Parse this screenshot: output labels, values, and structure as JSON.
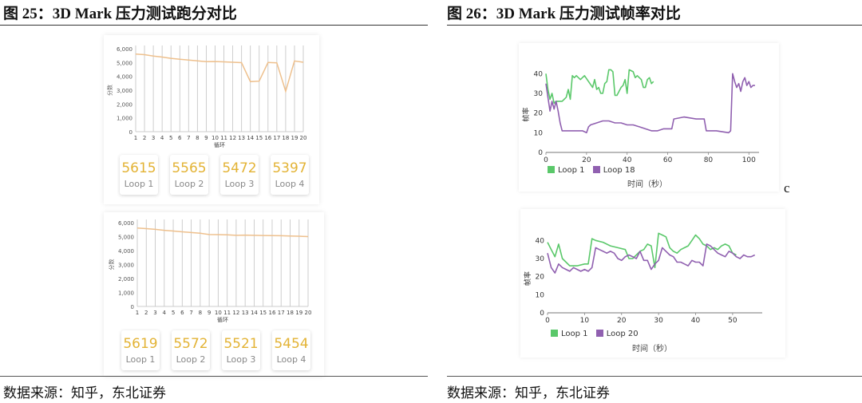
{
  "titles": {
    "fig25": "图 25：3D Mark 压力测试跑分对比",
    "fig26": "图 26：3D Mark 压力测试帧率对比"
  },
  "sources": {
    "left": "数据来源：知乎，东北证券",
    "right": "数据来源：知乎，东北证券"
  },
  "stray_mark": "c",
  "colors": {
    "score_line": "#eec08d",
    "loop_a": "#5ac86a",
    "loop_b": "#9060b0",
    "card_value": "#e3b335"
  },
  "chart_data": [
    {
      "id": "score-top",
      "type": "line",
      "ylabel": "分数",
      "xlabel": "循环",
      "x": [
        "1",
        "2",
        "3",
        "4",
        "5",
        "6",
        "7",
        "8",
        "9",
        "10",
        "11",
        "12",
        "13",
        "14",
        "15",
        "16",
        "17",
        "18",
        "19",
        "20"
      ],
      "values": [
        5615,
        5565,
        5472,
        5397,
        5300,
        5230,
        5180,
        5120,
        5060,
        5070,
        5050,
        5020,
        4990,
        3620,
        3650,
        5000,
        4980,
        2920,
        5110,
        5020
      ],
      "ylim": [
        0,
        6000
      ],
      "yticks": [
        "0",
        "1,000",
        "2,000",
        "3,000",
        "4,000",
        "5,000",
        "6,000"
      ],
      "cards": [
        {
          "value": "5615",
          "label": "Loop 1"
        },
        {
          "value": "5565",
          "label": "Loop 2"
        },
        {
          "value": "5472",
          "label": "Loop 3"
        },
        {
          "value": "5397",
          "label": "Loop 4"
        }
      ]
    },
    {
      "id": "score-bottom",
      "type": "line",
      "ylabel": "分数",
      "xlabel": "循环",
      "x": [
        "1",
        "2",
        "3",
        "4",
        "5",
        "6",
        "7",
        "8",
        "9",
        "10",
        "11",
        "12",
        "13",
        "14",
        "15",
        "16",
        "17",
        "18",
        "19",
        "20"
      ],
      "values": [
        5619,
        5572,
        5521,
        5454,
        5400,
        5340,
        5290,
        5240,
        5150,
        5140,
        5130,
        5090,
        5110,
        5090,
        5080,
        5070,
        5060,
        5040,
        5030,
        5000
      ],
      "ylim": [
        0,
        6000
      ],
      "yticks": [
        "0",
        "1,000",
        "2,000",
        "3,000",
        "4,000",
        "5,000",
        "6,000"
      ],
      "cards": [
        {
          "value": "5619",
          "label": "Loop 1"
        },
        {
          "value": "5572",
          "label": "Loop 2"
        },
        {
          "value": "5521",
          "label": "Loop 3"
        },
        {
          "value": "5454",
          "label": "Loop 4"
        }
      ]
    },
    {
      "id": "fps-top",
      "type": "line",
      "ylabel": "帧率",
      "xlabel": "时间（秒）",
      "xlim": [
        0,
        105
      ],
      "ylim": [
        0,
        45
      ],
      "xticks": [
        "0",
        "20",
        "40",
        "60",
        "80",
        "100"
      ],
      "yticks": [
        "0",
        "10",
        "20",
        "30",
        "40"
      ],
      "series": [
        {
          "name": "Loop 1",
          "points": [
            [
              0,
              40
            ],
            [
              1,
              32
            ],
            [
              2,
              27
            ],
            [
              3,
              30
            ],
            [
              4,
              25
            ],
            [
              5,
              26
            ],
            [
              8,
              26
            ],
            [
              10,
              28
            ],
            [
              11,
              32
            ],
            [
              12,
              27
            ],
            [
              13,
              39
            ],
            [
              14,
              38
            ],
            [
              15,
              39
            ],
            [
              17,
              37
            ],
            [
              19,
              39
            ],
            [
              21,
              36
            ],
            [
              23,
              33
            ],
            [
              24,
              37
            ],
            [
              25,
              32
            ],
            [
              26,
              33
            ],
            [
              27,
              30
            ],
            [
              28,
              30
            ],
            [
              29,
              35
            ],
            [
              30,
              36
            ],
            [
              31,
              42
            ],
            [
              32,
              42
            ],
            [
              33,
              41
            ],
            [
              34,
              29
            ],
            [
              35,
              29
            ],
            [
              37,
              33
            ],
            [
              38,
              34
            ],
            [
              39,
              37
            ],
            [
              40,
              30
            ],
            [
              41,
              42
            ],
            [
              43,
              41
            ],
            [
              44,
              38
            ],
            [
              45,
              39
            ],
            [
              47,
              37
            ],
            [
              48,
              33
            ],
            [
              49,
              33
            ],
            [
              50,
              37
            ],
            [
              51,
              38
            ],
            [
              52,
              35
            ],
            [
              53,
              36
            ]
          ]
        },
        {
          "name": "Loop 18",
          "points": [
            [
              0,
              35
            ],
            [
              1,
              28
            ],
            [
              2,
              21
            ],
            [
              3,
              26
            ],
            [
              4,
              22
            ],
            [
              5,
              26
            ],
            [
              6,
              21
            ],
            [
              7,
              15
            ],
            [
              8,
              11
            ],
            [
              10,
              11
            ],
            [
              12,
              11
            ],
            [
              15,
              11
            ],
            [
              18,
              11
            ],
            [
              20,
              10
            ],
            [
              21,
              13
            ],
            [
              22,
              14
            ],
            [
              25,
              15
            ],
            [
              28,
              16
            ],
            [
              31,
              16
            ],
            [
              34,
              15
            ],
            [
              37,
              15
            ],
            [
              40,
              14
            ],
            [
              43,
              14
            ],
            [
              46,
              13
            ],
            [
              49,
              12
            ],
            [
              52,
              11
            ],
            [
              55,
              11
            ],
            [
              58,
              12
            ],
            [
              62,
              12
            ],
            [
              63,
              17
            ],
            [
              68,
              18
            ],
            [
              74,
              17
            ],
            [
              78,
              17
            ],
            [
              79,
              11
            ],
            [
              84,
              11
            ],
            [
              90,
              10
            ],
            [
              91,
              11
            ],
            [
              92,
              40
            ],
            [
              93,
              36
            ],
            [
              94,
              33
            ],
            [
              95,
              35
            ],
            [
              96,
              31
            ],
            [
              97,
              36
            ],
            [
              98,
              38
            ],
            [
              99,
              34
            ],
            [
              100,
              36
            ],
            [
              101,
              33
            ],
            [
              102,
              34
            ],
            [
              103,
              34
            ]
          ]
        }
      ]
    },
    {
      "id": "fps-bottom",
      "type": "line",
      "ylabel": "帧率",
      "xlabel": "时间（秒）",
      "xlim": [
        0,
        58
      ],
      "ylim": [
        0,
        45
      ],
      "xticks": [
        "0",
        "10",
        "20",
        "30",
        "40",
        "50"
      ],
      "yticks": [
        "0",
        "10",
        "20",
        "30",
        "40"
      ],
      "series": [
        {
          "name": "Loop 1",
          "points": [
            [
              0,
              39
            ],
            [
              1,
              35
            ],
            [
              2,
              31
            ],
            [
              3,
              38
            ],
            [
              4,
              30
            ],
            [
              5,
              28
            ],
            [
              6,
              26
            ],
            [
              8,
              26
            ],
            [
              10,
              27
            ],
            [
              11,
              27
            ],
            [
              12,
              41
            ],
            [
              13,
              40
            ],
            [
              15,
              39
            ],
            [
              17,
              37
            ],
            [
              19,
              36
            ],
            [
              21,
              35
            ],
            [
              22,
              30
            ],
            [
              23,
              30
            ],
            [
              24,
              32
            ],
            [
              25,
              34
            ],
            [
              26,
              35
            ],
            [
              27,
              38
            ],
            [
              28,
              37
            ],
            [
              29,
              25
            ],
            [
              30,
              44
            ],
            [
              31,
              43
            ],
            [
              32,
              42
            ],
            [
              33,
              36
            ],
            [
              34,
              34
            ],
            [
              35,
              33
            ],
            [
              36,
              35
            ],
            [
              37,
              36
            ],
            [
              38,
              37
            ],
            [
              39,
              40
            ],
            [
              40,
              43
            ],
            [
              41,
              41
            ],
            [
              42,
              38
            ],
            [
              43,
              37
            ],
            [
              44,
              35
            ],
            [
              45,
              36
            ],
            [
              46,
              35
            ],
            [
              47,
              37
            ],
            [
              48,
              38
            ],
            [
              49,
              37
            ],
            [
              50,
              33
            ],
            [
              51,
              32
            ]
          ]
        },
        {
          "name": "Loop 20",
          "points": [
            [
              0,
              33
            ],
            [
              1,
              25
            ],
            [
              2,
              22
            ],
            [
              3,
              27
            ],
            [
              4,
              25
            ],
            [
              5,
              24
            ],
            [
              6,
              23
            ],
            [
              7,
              25
            ],
            [
              8,
              24
            ],
            [
              9,
              23
            ],
            [
              10,
              24
            ],
            [
              11,
              23
            ],
            [
              12,
              25
            ],
            [
              13,
              36
            ],
            [
              14,
              35
            ],
            [
              15,
              34
            ],
            [
              16,
              33
            ],
            [
              17,
              34
            ],
            [
              18,
              33
            ],
            [
              19,
              30
            ],
            [
              20,
              29
            ],
            [
              21,
              31
            ],
            [
              22,
              32
            ],
            [
              23,
              31
            ],
            [
              24,
              30
            ],
            [
              25,
              34
            ],
            [
              26,
              29
            ],
            [
              27,
              29
            ],
            [
              28,
              24
            ],
            [
              29,
              27
            ],
            [
              30,
              29
            ],
            [
              31,
              36
            ],
            [
              32,
              34
            ],
            [
              33,
              32
            ],
            [
              34,
              31
            ],
            [
              35,
              28
            ],
            [
              36,
              28
            ],
            [
              37,
              27
            ],
            [
              38,
              26
            ],
            [
              39,
              29
            ],
            [
              40,
              28
            ],
            [
              41,
              28
            ],
            [
              42,
              26
            ],
            [
              43,
              38
            ],
            [
              44,
              37
            ],
            [
              45,
              35
            ],
            [
              46,
              33
            ],
            [
              47,
              32
            ],
            [
              48,
              31
            ],
            [
              49,
              34
            ],
            [
              50,
              33
            ],
            [
              51,
              31
            ],
            [
              52,
              30
            ],
            [
              53,
              32
            ],
            [
              54,
              31
            ],
            [
              55,
              31
            ],
            [
              56,
              32
            ]
          ]
        }
      ]
    }
  ]
}
